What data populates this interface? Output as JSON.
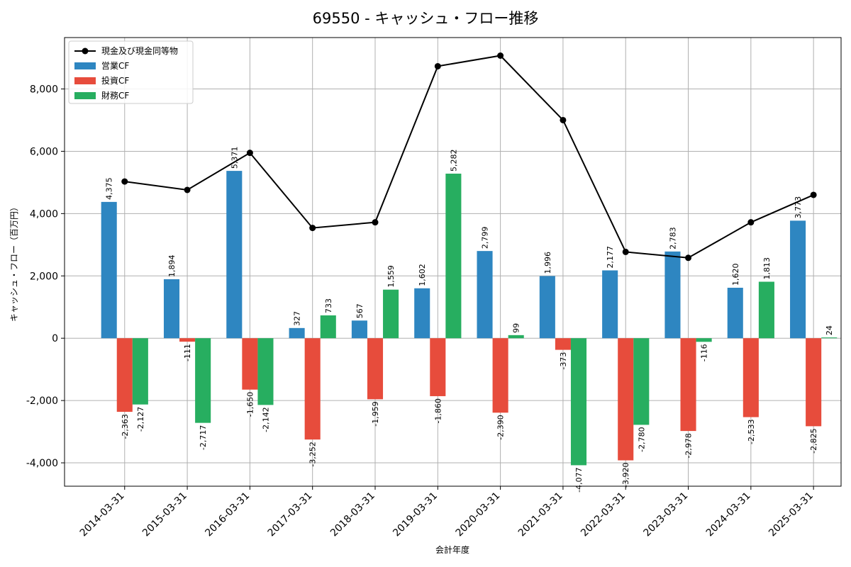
{
  "chart_data": {
    "type": "bar",
    "title": "69550 - キャッシュ・フロー推移",
    "xlabel": "会計年度",
    "ylabel": "キャッシュ・フロー（百万円）",
    "ylim": [
      -4750,
      9650
    ],
    "yticks": [
      -4000,
      -2000,
      0,
      2000,
      4000,
      6000,
      8000
    ],
    "ytick_labels": [
      "-4,000",
      "-2,000",
      "0",
      "2,000",
      "4,000",
      "6,000",
      "8,000"
    ],
    "grid": true,
    "legend_position": "top-left",
    "categories": [
      "2014-03-31",
      "2015-03-31",
      "2016-03-31",
      "2017-03-31",
      "2018-03-31",
      "2019-03-31",
      "2020-03-31",
      "2021-03-31",
      "2022-03-31",
      "2023-03-31",
      "2024-03-31",
      "2025-03-31"
    ],
    "series": [
      {
        "name": "営業CF",
        "kind": "bar",
        "color": "#2e86c1",
        "values": [
          4375,
          1894,
          5371,
          327,
          567,
          1602,
          2799,
          1996,
          2177,
          2783,
          1620,
          3773
        ],
        "labels": [
          "4,375",
          "1,894",
          "5,371",
          "327",
          "567",
          "1,602",
          "2,799",
          "1,996",
          "2,177",
          "2,783",
          "1,620",
          "3,773"
        ]
      },
      {
        "name": "投資CF",
        "kind": "bar",
        "color": "#e74c3c",
        "values": [
          -2363,
          -111,
          -1650,
          -3252,
          -1959,
          -1860,
          -2390,
          -373,
          -3920,
          -2978,
          -2533,
          -2825
        ],
        "labels": [
          "-2,363",
          "-111",
          "-1,650",
          "-3,252",
          "-1,959",
          "-1,860",
          "-2,390",
          "-373",
          "-3,920",
          "-2,978",
          "-2,533",
          "-2,825"
        ]
      },
      {
        "name": "財務CF",
        "kind": "bar",
        "color": "#27ae60",
        "values": [
          -2127,
          -2717,
          -2142,
          733,
          1559,
          5282,
          99,
          -4077,
          -2780,
          -116,
          1813,
          24
        ],
        "labels": [
          "-2,127",
          "-2,717",
          "-2,142",
          "733",
          "1,559",
          "5,282",
          "99",
          "-4,077",
          "-2,780",
          "-116",
          "1,813",
          "24"
        ]
      },
      {
        "name": "現金及び現金同等物",
        "kind": "line",
        "color": "#000000",
        "values": [
          5030,
          4760,
          5950,
          3540,
          3720,
          8730,
          9070,
          7000,
          2770,
          2580,
          3720,
          4600
        ]
      }
    ]
  }
}
